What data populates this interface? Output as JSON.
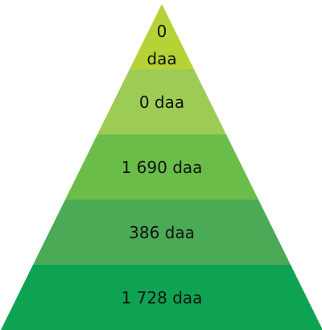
{
  "chart_data": {
    "type": "pyramid",
    "values": [
      0,
      0,
      1690,
      386,
      1728
    ],
    "value_labels": [
      "0 daa",
      "0 daa",
      "1 690 daa",
      "386 daa",
      "1 728 daa"
    ],
    "colors": [
      "#b5d336",
      "#9ccc55",
      "#6abd48",
      "#4aaa55",
      "#0ea352"
    ]
  }
}
